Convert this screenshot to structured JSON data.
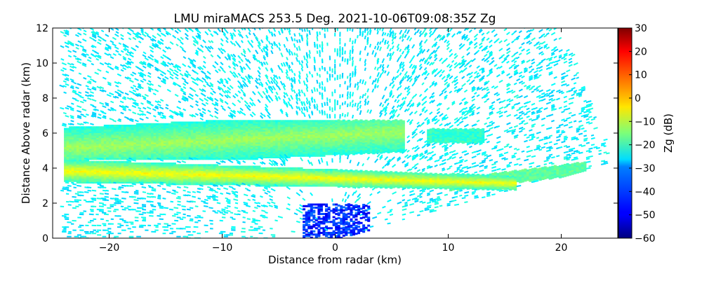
{
  "chart_data": {
    "type": "heatmap",
    "title": "LMU miraMACS 253.5 Deg. 2021-10-06T09:08:35Z  Zg",
    "xlabel": "Distance from radar (km)",
    "ylabel": "Distance Above radar  (km)",
    "xlim": [
      -25,
      25
    ],
    "ylim": [
      0,
      12
    ],
    "x_ticks": [
      -20,
      -10,
      0,
      10,
      20
    ],
    "x_tick_labels": [
      "−20",
      "−10",
      "0",
      "10",
      "20"
    ],
    "y_ticks": [
      0,
      2,
      4,
      6,
      8,
      10,
      12
    ],
    "y_tick_labels": [
      "0",
      "2",
      "4",
      "6",
      "8",
      "10",
      "12"
    ],
    "colorbar": {
      "label": "Zg (dB)",
      "range": [
        -60,
        30
      ],
      "colormap": "jet",
      "ticks": [
        30,
        20,
        10,
        0,
        -10,
        -20,
        -30,
        -40,
        -50,
        -60
      ],
      "tick_labels": [
        "30",
        "20",
        "10",
        "0",
        "−10",
        "−20",
        "−30",
        "−40",
        "−50",
        "−60"
      ]
    },
    "scan": {
      "azimuth_deg": 253.5,
      "left_edge_km": -24,
      "right_edge_km": 24,
      "max_height_km": 12,
      "lower_boundary_right": [
        [
          0,
          0
        ],
        [
          23.5,
          4.2
        ]
      ]
    },
    "features": [
      {
        "name": "lower-cloud-layer",
        "x_range": [
          -24,
          16
        ],
        "height_km_start": 3.9,
        "height_km_end": 3.2,
        "zg_db": -8
      },
      {
        "name": "upper-cloud-layer",
        "x_range": [
          -24,
          6
        ],
        "height_km": [
          4.5,
          6.8
        ],
        "zg_db": -18
      },
      {
        "name": "small-cloud",
        "x_range": [
          8,
          13
        ],
        "height_km": [
          5.5,
          6.3
        ],
        "zg_db": -22
      },
      {
        "name": "near-radar-clutter",
        "x_range": [
          -3,
          3
        ],
        "height_km": [
          0,
          2
        ],
        "zg_db": -45
      },
      {
        "name": "clear-air-noise",
        "zg_db": -27
      }
    ],
    "grid": false,
    "legend": "none"
  }
}
